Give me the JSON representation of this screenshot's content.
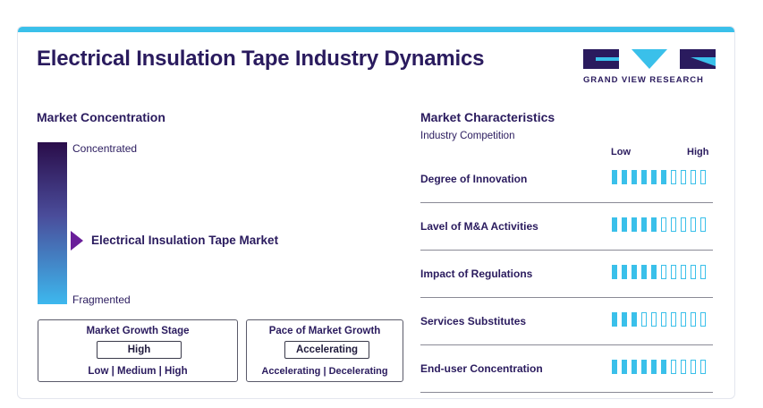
{
  "title": "Electrical Insulation Tape Industry Dynamics",
  "brand": {
    "name": "GRAND VIEW RESEARCH",
    "colors": {
      "dark": "#2a1b5e",
      "accent": "#3ac0ea"
    }
  },
  "market_concentration": {
    "title": "Market Concentration",
    "top_label": "Concentrated",
    "bottom_label": "Fragmented",
    "marker_label": "Electrical Insulation Tape Market"
  },
  "growth_stage": {
    "title": "Market Growth Stage",
    "value": "High",
    "options": "Low | Medium | High"
  },
  "growth_pace": {
    "title": "Pace of Market Growth",
    "value": "Accelerating",
    "options": "Accelerating | Decelerating"
  },
  "characteristics": {
    "title": "Market Characteristics",
    "subtitle": "Industry Competition",
    "low_label": "Low",
    "high_label": "High",
    "rows": [
      {
        "label": "Degree of Innovation",
        "level": 6,
        "max": 10
      },
      {
        "label": "Lavel of M&A Activities",
        "level": 5,
        "max": 10
      },
      {
        "label": "Impact of Regulations",
        "level": 5,
        "max": 10
      },
      {
        "label": "Services Substitutes",
        "level": 3,
        "max": 10
      },
      {
        "label": "End-user Concentration",
        "level": 6,
        "max": 10
      }
    ]
  }
}
